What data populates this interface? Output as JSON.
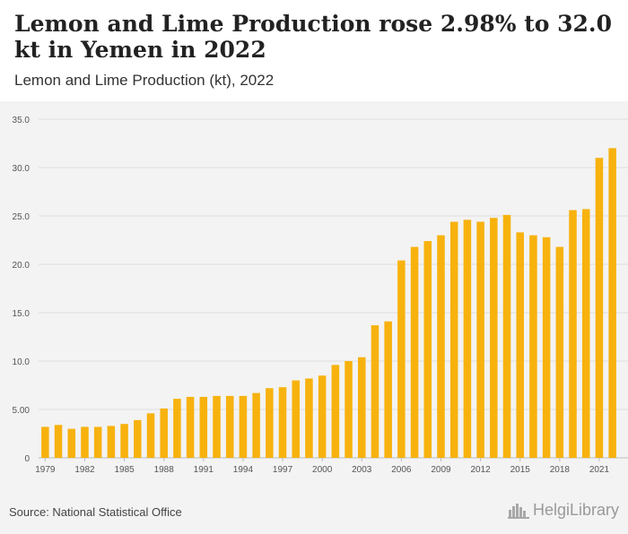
{
  "header": {
    "title": "Lemon and Lime Production rose 2.98% to 32.0 kt in Yemen in 2022",
    "subtitle": "Lemon and Lime Production (kt), 2022"
  },
  "footer": {
    "source": "Source: National Statistical Office",
    "logo_text": "HelgiLibrary",
    "logo_icon": "city-skyline-icon"
  },
  "colors": {
    "bar": "#F7B20E",
    "grid": "#dddddd",
    "background": "#f3f3f3"
  },
  "chart_data": {
    "type": "bar",
    "categories": [
      "1979",
      "1980",
      "1981",
      "1982",
      "1983",
      "1984",
      "1985",
      "1986",
      "1987",
      "1988",
      "1989",
      "1990",
      "1991",
      "1992",
      "1993",
      "1994",
      "1995",
      "1996",
      "1997",
      "1998",
      "1999",
      "2000",
      "2001",
      "2002",
      "2003",
      "2004",
      "2005",
      "2006",
      "2007",
      "2008",
      "2009",
      "2010",
      "2011",
      "2012",
      "2013",
      "2014",
      "2015",
      "2016",
      "2017",
      "2018",
      "2019",
      "2020",
      "2021",
      "2022"
    ],
    "values": [
      3.2,
      3.4,
      3.0,
      3.2,
      3.2,
      3.3,
      3.5,
      3.9,
      4.6,
      5.1,
      6.1,
      6.3,
      6.3,
      6.4,
      6.4,
      6.4,
      6.7,
      7.2,
      7.3,
      8.0,
      8.2,
      8.5,
      9.6,
      10.0,
      10.4,
      13.7,
      14.1,
      20.4,
      21.8,
      22.4,
      23.0,
      24.4,
      24.6,
      24.4,
      24.8,
      25.1,
      23.3,
      23.0,
      22.8,
      21.8,
      25.6,
      25.7,
      31.0,
      32.0
    ],
    "xticks": [
      "1979",
      "1982",
      "1985",
      "1988",
      "1991",
      "1994",
      "1997",
      "2000",
      "2003",
      "2006",
      "2009",
      "2012",
      "2015",
      "2018",
      "2021"
    ],
    "yticks": [
      "0",
      "5.00",
      "10.0",
      "15.0",
      "20.0",
      "25.0",
      "30.0",
      "35.0"
    ],
    "ylim": [
      0,
      35
    ],
    "grid": true,
    "legend": "none"
  }
}
